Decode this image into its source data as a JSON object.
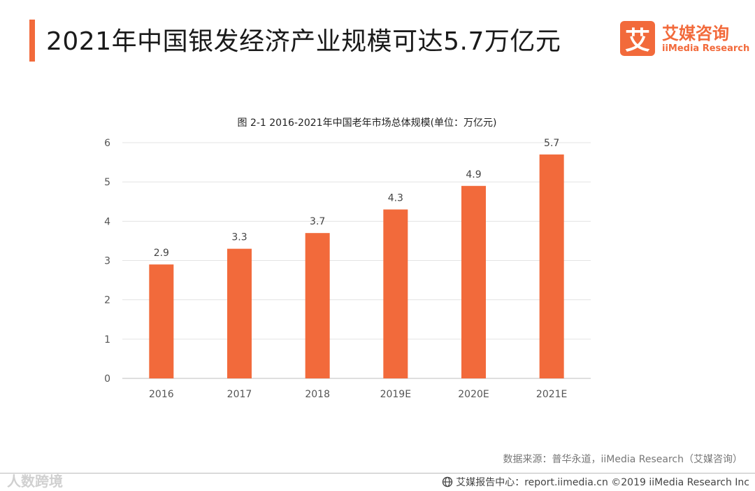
{
  "page": {
    "title": "2021年中国银发经济产业规模可达5.7万亿元"
  },
  "logo": {
    "badge_glyph": "艾",
    "name_cn": "艾媒咨询",
    "name_en": "iiMedia Research"
  },
  "chart_data": {
    "type": "bar",
    "title": "图 2-1 2016-2021年中国老年市场总体规模(单位：万亿元)",
    "categories": [
      "2016",
      "2017",
      "2018",
      "2019E",
      "2020E",
      "2021E"
    ],
    "values": [
      2.9,
      3.3,
      3.7,
      4.3,
      4.9,
      5.7
    ],
    "data_labels": [
      "2.9",
      "3.3",
      "3.7",
      "4.3",
      "4.9",
      "5.7"
    ],
    "yticks": [
      "0",
      "1",
      "2",
      "3",
      "4",
      "5",
      "6"
    ],
    "ylim": [
      0,
      6
    ],
    "xlabel": "",
    "ylabel": "",
    "grid": true,
    "bar_color": "#f26a3b"
  },
  "source": "数据来源：普华永道，iiMedia Research（艾媒咨询）",
  "footer": {
    "text": "艾媒报告中心：report.iimedia.cn ©2019 iiMedia Research Inc"
  },
  "watermark": "人数跨境"
}
